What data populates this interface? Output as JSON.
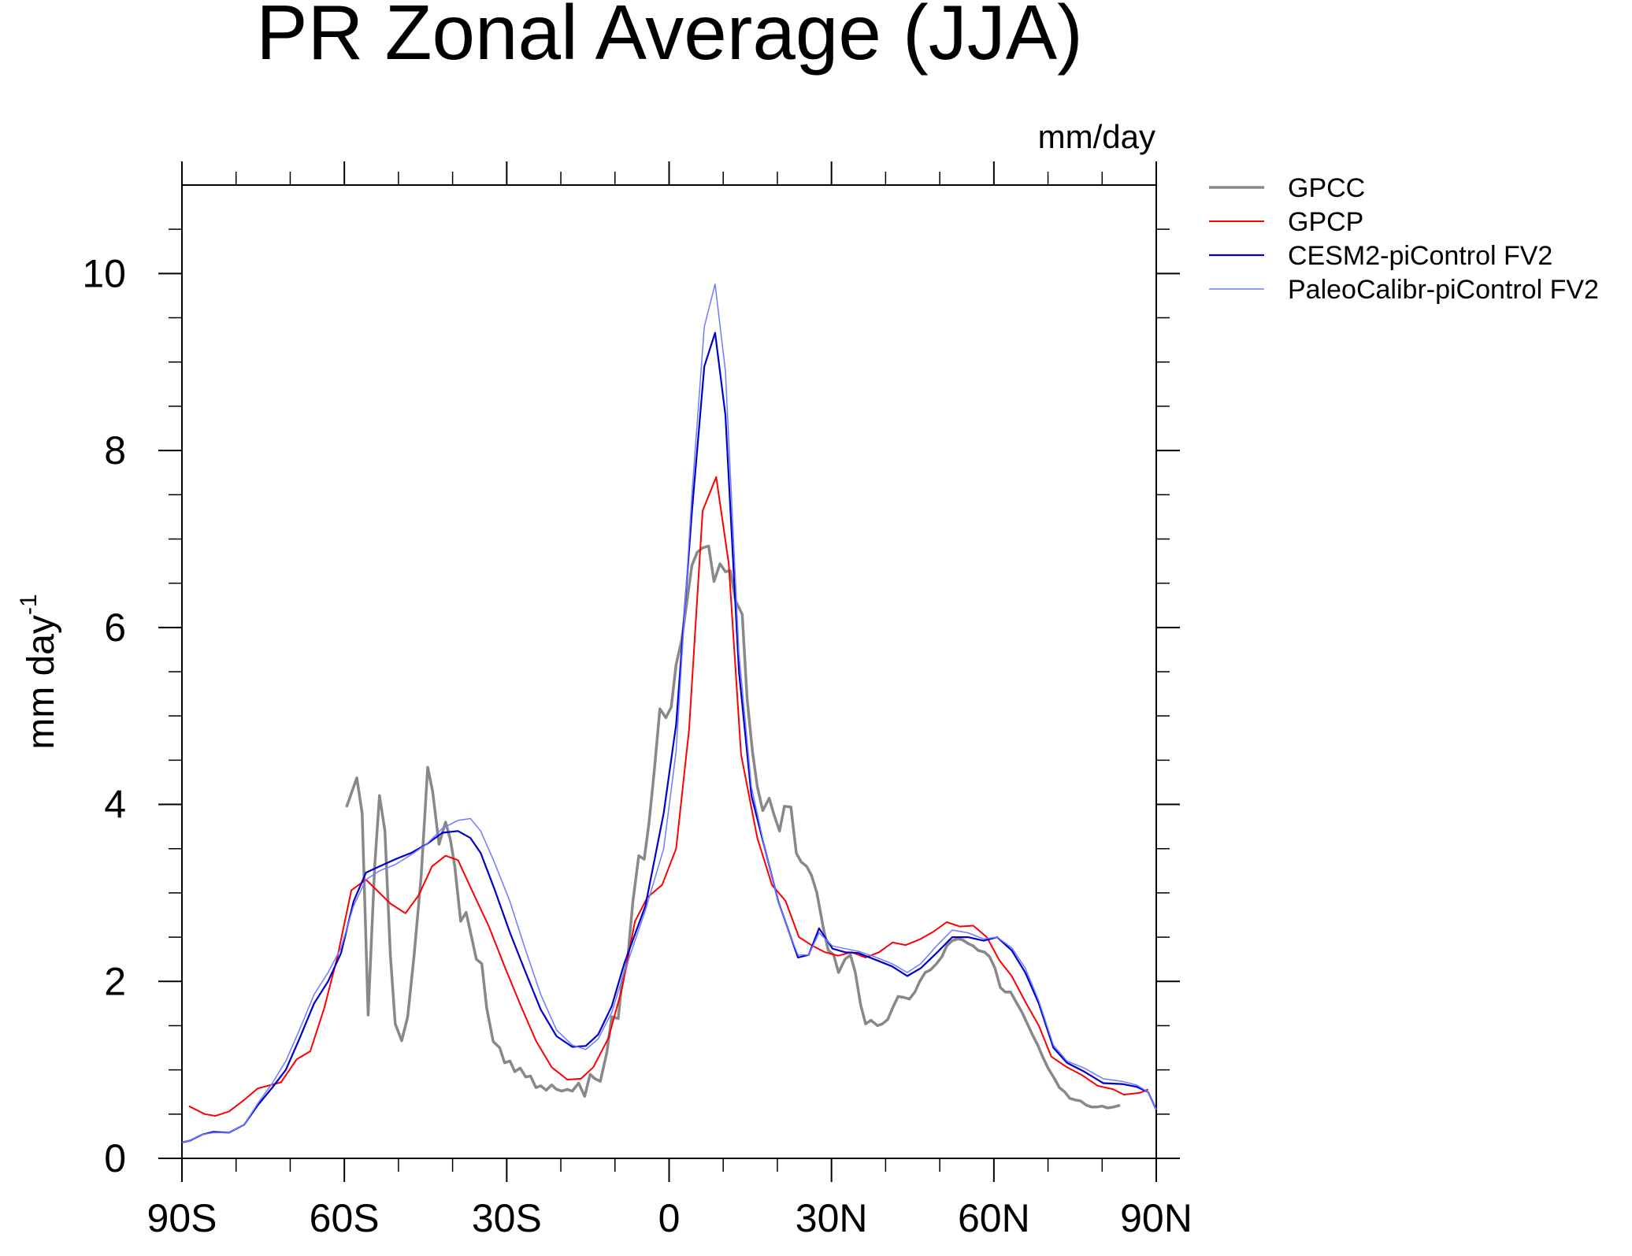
{
  "chart_data": {
    "type": "line",
    "title": "PR Zonal Average (JJA)",
    "units": "mm/day",
    "ylabel": "mm day",
    "ylabel_sup": "-1",
    "xlim": [
      -90,
      90
    ],
    "ylim": [
      0,
      11
    ],
    "xticks": [
      {
        "value": -90,
        "label": "90S"
      },
      {
        "value": -60,
        "label": "60S"
      },
      {
        "value": -30,
        "label": "30S"
      },
      0,
      {
        "value": 30,
        "label": "30N"
      },
      {
        "value": 60,
        "label": "60N"
      },
      {
        "value": 90,
        "label": "90N"
      }
    ],
    "xminorticks": [
      -80,
      -70,
      -50,
      -40,
      -20,
      -10,
      10,
      20,
      40,
      50,
      70,
      80
    ],
    "yticks": [
      0,
      2,
      4,
      6,
      8,
      10
    ],
    "yminorticks": [
      0.5,
      1,
      1.5,
      2.5,
      3,
      3.5,
      4.5,
      5,
      5.5,
      6.5,
      7,
      7.5,
      8.5,
      9,
      9.5,
      10.5
    ],
    "series": [
      {
        "name": "GPCC",
        "color": "#888888",
        "width": 3.5,
        "x": [
          -59.6,
          -57.7,
          -56.7,
          -55.6,
          -54.4,
          -53.5,
          -52.5,
          -51.5,
          -50.6,
          -49.4,
          -48.3,
          -47.1,
          -45.8,
          -44.6,
          -43.7,
          -42.5,
          -41.3,
          -40.4,
          -39.6,
          -38.5,
          -37.5,
          -36.5,
          -35.6,
          -34.6,
          -33.7,
          -32.5,
          -31.3,
          -30.4,
          -29.4,
          -28.5,
          -27.5,
          -26.5,
          -25.6,
          -24.6,
          -23.7,
          -22.7,
          -21.7,
          -20.8,
          -19.8,
          -18.8,
          -17.9,
          -16.7,
          -15.6,
          -14.6,
          -13.7,
          -12.7,
          -11.5,
          -10.6,
          -9.4,
          -8.7,
          -7.7,
          -6.7,
          -5.6,
          -4.6,
          -3.7,
          -2.7,
          -1.7,
          -0.6,
          0.4,
          1.3,
          2.3,
          3.3,
          4.2,
          5.2,
          6.2,
          7.3,
          8.3,
          9.4,
          10.4,
          11.3,
          12.3,
          13.5,
          14.4,
          15.4,
          16.3,
          17.3,
          18.5,
          19.4,
          20.4,
          21.3,
          22.5,
          23.5,
          24.4,
          25.4,
          26.3,
          27.3,
          28.5,
          29.4,
          30.4,
          31.3,
          32.5,
          33.5,
          34.4,
          35.4,
          36.3,
          37.3,
          38.5,
          39.4,
          40.4,
          41.3,
          42.3,
          43.3,
          44.4,
          45.4,
          46.3,
          47.3,
          48.3,
          49.4,
          50.4,
          51.3,
          52.3,
          53.3,
          54.2,
          55.2,
          56.2,
          57.1,
          58.3,
          59.2,
          60.2,
          61.2,
          62.1,
          63.1,
          64,
          65.2,
          66.2,
          67.1,
          68.1,
          69,
          70,
          71.2,
          72.1,
          73.1,
          74,
          75,
          76,
          77.1,
          78.1,
          79,
          80,
          81,
          82.1,
          83.3
        ],
        "values": [
          3.97,
          4.3,
          3.9,
          1.62,
          3.3,
          4.1,
          3.7,
          2.3,
          1.52,
          1.33,
          1.6,
          2.3,
          3.2,
          4.42,
          4.15,
          3.55,
          3.8,
          3.6,
          3.3,
          2.68,
          2.78,
          2.5,
          2.25,
          2.2,
          1.7,
          1.32,
          1.25,
          1.08,
          1.1,
          0.98,
          1.02,
          0.92,
          0.93,
          0.8,
          0.82,
          0.77,
          0.83,
          0.78,
          0.76,
          0.78,
          0.76,
          0.85,
          0.7,
          0.95,
          0.9,
          0.87,
          1.2,
          1.6,
          1.58,
          2.0,
          2.23,
          2.9,
          3.42,
          3.38,
          3.8,
          4.4,
          5.08,
          4.98,
          5.1,
          5.58,
          5.85,
          6.3,
          6.7,
          6.85,
          6.9,
          6.92,
          6.52,
          6.72,
          6.63,
          6.64,
          6.3,
          6.15,
          5.2,
          4.6,
          4.2,
          3.93,
          4.07,
          3.88,
          3.7,
          3.98,
          3.97,
          3.45,
          3.35,
          3.3,
          3.2,
          3.0,
          2.6,
          2.35,
          2.3,
          2.1,
          2.25,
          2.3,
          2.1,
          1.73,
          1.52,
          1.56,
          1.5,
          1.52,
          1.57,
          1.7,
          1.83,
          1.82,
          1.8,
          1.88,
          2.0,
          2.1,
          2.13,
          2.2,
          2.28,
          2.4,
          2.46,
          2.48,
          2.47,
          2.43,
          2.4,
          2.35,
          2.33,
          2.28,
          2.15,
          1.93,
          1.88,
          1.88,
          1.78,
          1.65,
          1.52,
          1.4,
          1.28,
          1.15,
          1.02,
          0.9,
          0.8,
          0.75,
          0.68,
          0.66,
          0.65,
          0.6,
          0.58,
          0.58,
          0.59,
          0.57,
          0.58,
          0.6
        ]
      },
      {
        "name": "GPCP",
        "color": "#ff0000",
        "width": 2,
        "x": [
          -88.7,
          -85.8,
          -83.8,
          -81.3,
          -78.5,
          -76,
          -71.7,
          -68.8,
          -66.3,
          -63.7,
          -61.3,
          -58.7,
          -56,
          -54,
          -51.5,
          -48.7,
          -46.3,
          -43.8,
          -41.3,
          -39,
          -36.2,
          -33.3,
          -30.4,
          -27.5,
          -24.6,
          -21.7,
          -18.8,
          -16.3,
          -14,
          -11.2,
          -8.7,
          -6.3,
          -4,
          -1.3,
          1.3,
          3.7,
          6.2,
          8.7,
          11,
          13.3,
          16.3,
          19,
          21.5,
          24,
          26.3,
          28.8,
          31.2,
          33.7,
          36.3,
          38.8,
          41.3,
          43.7,
          46.5,
          48.8,
          51.3,
          53.7,
          56.2,
          58.7,
          61,
          63.3,
          65.8,
          68.3,
          70.6,
          73.5,
          76.3,
          79.2,
          82.1,
          84,
          86.9,
          88.5
        ],
        "values": [
          0.59,
          0.5,
          0.48,
          0.53,
          0.66,
          0.79,
          0.86,
          1.12,
          1.21,
          1.7,
          2.27,
          3.03,
          3.15,
          3.03,
          2.88,
          2.77,
          2.97,
          3.3,
          3.42,
          3.37,
          3.0,
          2.62,
          2.17,
          1.74,
          1.33,
          1.03,
          0.89,
          0.9,
          1.03,
          1.36,
          1.92,
          2.68,
          2.95,
          3.09,
          3.5,
          4.85,
          7.32,
          7.7,
          6.73,
          4.56,
          3.62,
          3.09,
          2.91,
          2.5,
          2.41,
          2.33,
          2.29,
          2.33,
          2.27,
          2.33,
          2.44,
          2.41,
          2.48,
          2.56,
          2.67,
          2.62,
          2.63,
          2.5,
          2.24,
          2.06,
          1.77,
          1.5,
          1.15,
          1.03,
          0.94,
          0.82,
          0.78,
          0.72,
          0.74,
          0.78
        ]
      },
      {
        "name": "CESM2-piControl FV2",
        "color": "#0000cc",
        "width": 2.2,
        "x": [
          -90,
          -88.5,
          -86.2,
          -84.2,
          -81.3,
          -78.5,
          -76,
          -73.3,
          -70.8,
          -68.3,
          -65.6,
          -63,
          -60.6,
          -58.3,
          -56,
          -53.5,
          -50.6,
          -47.7,
          -44.8,
          -41.9,
          -39,
          -36.7,
          -34.8,
          -32.3,
          -29.4,
          -26.5,
          -23.7,
          -20.8,
          -17.9,
          -15.4,
          -13.1,
          -10.6,
          -8.3,
          -4.4,
          -1,
          1.3,
          4.2,
          6.5,
          8.5,
          10.4,
          12.9,
          15.2,
          17.7,
          20.2,
          22.5,
          23.8,
          25.8,
          27.7,
          30.2,
          32.5,
          35,
          37.9,
          41.2,
          44,
          46.5,
          49.4,
          52.3,
          55.2,
          58.1,
          60.6,
          63.3,
          65.8,
          68.3,
          71,
          73.5,
          76.7,
          80.2,
          83.7,
          86.3,
          88.5,
          90
        ],
        "values": [
          0.18,
          0.2,
          0.27,
          0.3,
          0.29,
          0.38,
          0.6,
          0.8,
          1.0,
          1.35,
          1.75,
          2.0,
          2.32,
          2.9,
          3.23,
          3.3,
          3.38,
          3.45,
          3.55,
          3.68,
          3.7,
          3.62,
          3.45,
          3.05,
          2.55,
          2.1,
          1.68,
          1.38,
          1.26,
          1.27,
          1.4,
          1.72,
          2.2,
          2.85,
          3.9,
          4.9,
          7.3,
          8.95,
          9.33,
          8.4,
          5.5,
          4.1,
          3.5,
          2.9,
          2.5,
          2.27,
          2.3,
          2.6,
          2.37,
          2.33,
          2.32,
          2.25,
          2.17,
          2.06,
          2.15,
          2.32,
          2.5,
          2.5,
          2.46,
          2.5,
          2.35,
          2.1,
          1.75,
          1.25,
          1.08,
          0.98,
          0.85,
          0.84,
          0.81,
          0.75,
          0.55
        ]
      },
      {
        "name": "PaleoCalibr-piControl FV2",
        "color": "#6f7bff",
        "width": 1.5,
        "x": [
          -90,
          -88.5,
          -86.2,
          -84.2,
          -81.3,
          -78.5,
          -76,
          -73.3,
          -70.8,
          -68.3,
          -65.6,
          -63,
          -60.6,
          -58.3,
          -56,
          -53.5,
          -50.6,
          -47.7,
          -44.8,
          -41.9,
          -39,
          -36.7,
          -34.8,
          -32.3,
          -29.4,
          -26.5,
          -23.7,
          -20.8,
          -17.9,
          -15.4,
          -13.1,
          -10.6,
          -8.3,
          -4.4,
          -1,
          1.3,
          4.2,
          6.5,
          8.5,
          10.4,
          12.9,
          15.2,
          17.7,
          20.2,
          22.5,
          23.8,
          25.8,
          27.7,
          30.2,
          32.5,
          35,
          37.9,
          41.2,
          44,
          46.5,
          49.4,
          52.3,
          55.2,
          58.1,
          60.6,
          63.3,
          65.8,
          68.3,
          71,
          73.5,
          76.7,
          80.2,
          83.7,
          86.3,
          88.5,
          90
        ],
        "values": [
          0.18,
          0.2,
          0.27,
          0.29,
          0.29,
          0.38,
          0.62,
          0.85,
          1.1,
          1.45,
          1.85,
          2.1,
          2.38,
          2.85,
          3.15,
          3.25,
          3.32,
          3.43,
          3.55,
          3.73,
          3.82,
          3.84,
          3.7,
          3.35,
          2.9,
          2.35,
          1.85,
          1.45,
          1.28,
          1.23,
          1.35,
          1.65,
          2.1,
          2.8,
          3.5,
          4.6,
          7.5,
          9.4,
          9.88,
          8.9,
          5.7,
          4.2,
          3.5,
          2.9,
          2.5,
          2.3,
          2.3,
          2.55,
          2.4,
          2.37,
          2.34,
          2.28,
          2.2,
          2.1,
          2.2,
          2.4,
          2.58,
          2.55,
          2.48,
          2.5,
          2.38,
          2.15,
          1.78,
          1.28,
          1.1,
          1.02,
          0.9,
          0.87,
          0.83,
          0.75,
          0.55
        ]
      }
    ]
  }
}
